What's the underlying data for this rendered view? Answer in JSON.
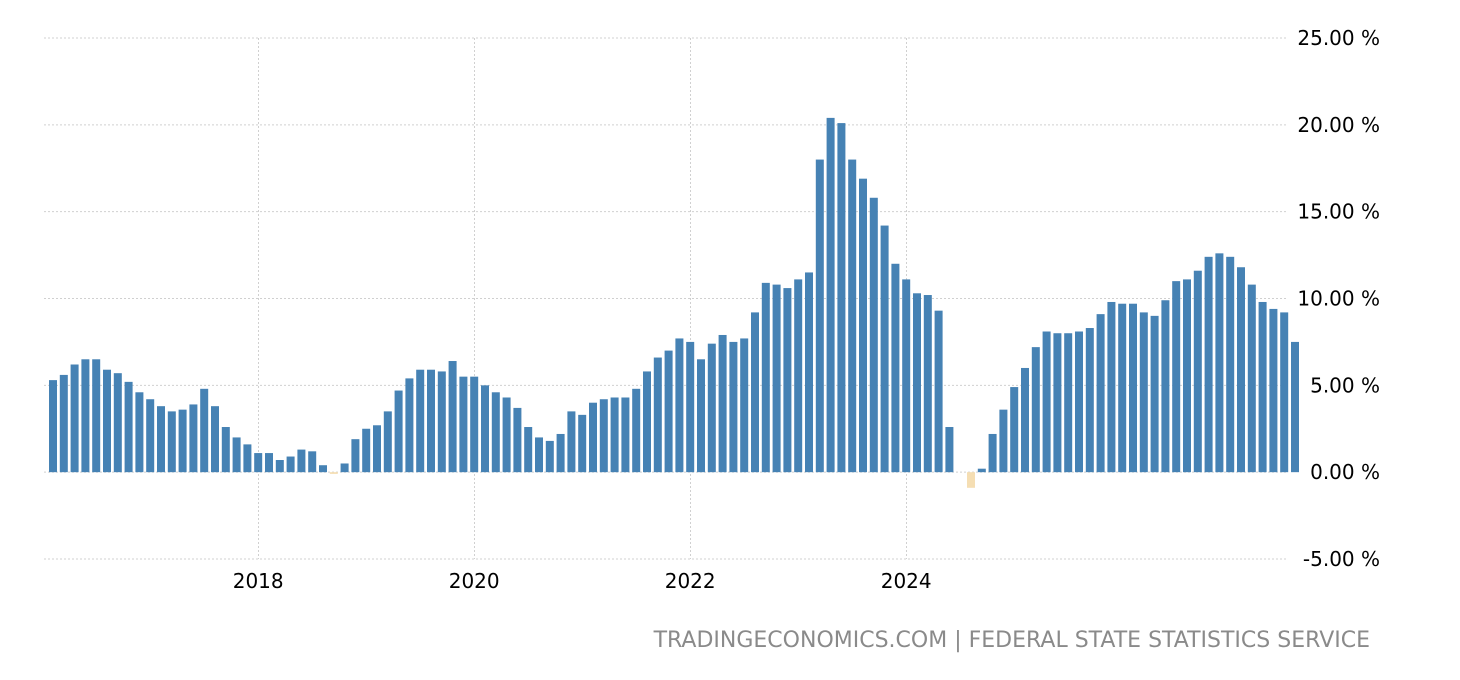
{
  "source_label": "TRADINGECONOMICS.COM | FEDERAL STATE STATISTICS SERVICE",
  "colors": {
    "positive": "#4682b4",
    "negative": "#f5deb3",
    "grid": "#d0d0d0",
    "text": "#000000",
    "source": "#8a8a8a"
  },
  "chart_data": {
    "type": "bar",
    "title": "",
    "xlabel": "",
    "ylabel": "",
    "ylim": [
      -5,
      25
    ],
    "grid": true,
    "y_ticks": [
      25,
      20,
      15,
      10,
      5,
      0,
      -5
    ],
    "y_tick_labels": [
      "25.00 %",
      "20.00 %",
      "15.00 %",
      "10.00 %",
      "5.00 %",
      "0.00 %",
      "-5.00 %"
    ],
    "x_tick_labels": [
      "2018",
      "2020",
      "2022",
      "2024"
    ],
    "x_ticks_index": [
      19,
      39,
      59,
      79
    ],
    "start": "2016-07",
    "frequency": "monthly",
    "values": [
      5.3,
      5.6,
      6.2,
      6.5,
      6.5,
      5.9,
      5.7,
      5.2,
      4.6,
      4.2,
      3.8,
      3.5,
      3.6,
      3.9,
      4.8,
      3.8,
      2.6,
      2.0,
      1.6,
      1.1,
      1.1,
      0.7,
      0.9,
      1.3,
      1.2,
      0.4,
      -0.1,
      0.5,
      1.9,
      2.5,
      2.7,
      3.5,
      4.7,
      5.4,
      5.9,
      5.9,
      5.8,
      6.4,
      5.5,
      5.5,
      5.0,
      4.6,
      4.3,
      3.7,
      2.6,
      2.0,
      1.8,
      2.2,
      3.5,
      3.3,
      4.0,
      4.2,
      4.3,
      4.3,
      4.8,
      5.8,
      6.6,
      7.0,
      7.7,
      7.5,
      6.5,
      7.4,
      7.9,
      7.5,
      7.7,
      9.2,
      10.9,
      10.8,
      10.6,
      11.1,
      11.5,
      18.0,
      20.4,
      20.1,
      18.0,
      16.9,
      15.8,
      14.2,
      12.0,
      11.1,
      10.3,
      10.2,
      9.3,
      2.6,
      0.0,
      -0.9,
      0.2,
      2.2,
      3.6,
      4.9,
      6.0,
      7.2,
      8.1,
      8.0,
      8.0,
      8.1,
      8.3,
      9.1,
      9.8,
      9.7,
      9.7,
      9.2,
      9.0,
      9.9,
      11.0,
      11.1,
      11.6,
      12.4,
      12.6,
      12.4,
      11.8,
      10.8,
      9.8,
      9.4,
      9.2,
      7.5
    ]
  }
}
